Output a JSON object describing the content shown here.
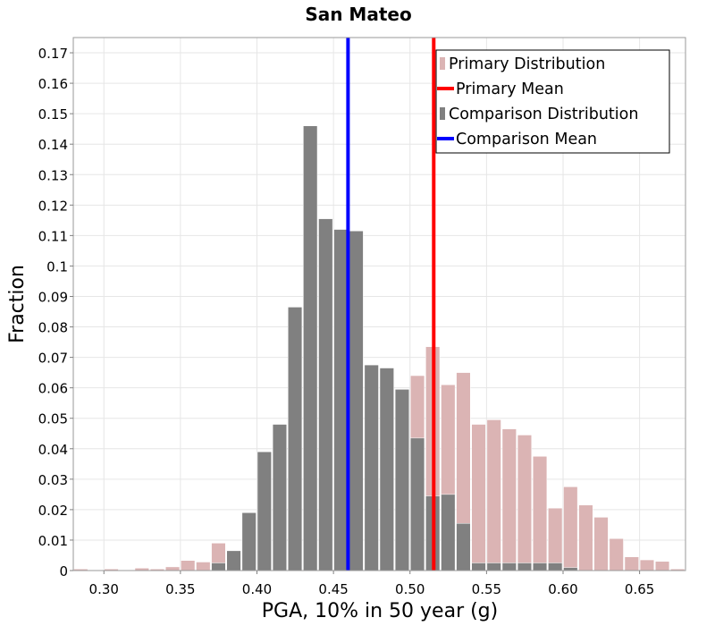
{
  "chart_data": {
    "type": "bar",
    "title": "San Mateo",
    "xlabel": "PGA, 10% in 50 year (g)",
    "ylabel": "Fraction",
    "xlim": [
      0.28,
      0.68
    ],
    "ylim": [
      0,
      0.175
    ],
    "x_ticks": [
      "0.30",
      "0.35",
      "0.40",
      "0.45",
      "0.50",
      "0.55",
      "0.60",
      "0.65"
    ],
    "y_ticks": [
      "0",
      "0.01",
      "0.02",
      "0.03",
      "0.04",
      "0.05",
      "0.06",
      "0.07",
      "0.08",
      "0.09",
      "0.1",
      "0.11",
      "0.12",
      "0.13",
      "0.14",
      "0.15",
      "0.16",
      "0.17"
    ],
    "grid": true,
    "legend_position": "top-right",
    "bin_width": 0.01,
    "bin_centers": [
      0.285,
      0.295,
      0.305,
      0.315,
      0.325,
      0.335,
      0.345,
      0.355,
      0.365,
      0.375,
      0.385,
      0.395,
      0.405,
      0.415,
      0.425,
      0.435,
      0.445,
      0.455,
      0.465,
      0.475,
      0.485,
      0.495,
      0.505,
      0.515,
      0.525,
      0.535,
      0.545,
      0.555,
      0.565,
      0.575,
      0.585,
      0.595,
      0.605,
      0.615,
      0.625,
      0.635,
      0.645,
      0.655,
      0.665,
      0.675
    ],
    "series": [
      {
        "name": "Primary Distribution",
        "color": "#dbb4b4",
        "values": [
          0.0005,
          0,
          0.0005,
          0,
          0.0008,
          0.0005,
          0.0012,
          0.0033,
          0.0028,
          0.009,
          0.0015,
          0.0018,
          0.002,
          0.002,
          0.0025,
          0.0025,
          0.003,
          0.004,
          0.006,
          0.008,
          0.012,
          0.018,
          0.064,
          0.0735,
          0.061,
          0.065,
          0.048,
          0.0495,
          0.0465,
          0.0445,
          0.0375,
          0.0205,
          0.0275,
          0.0215,
          0.0175,
          0.0105,
          0.0045,
          0.0035,
          0.003,
          0.0005
        ]
      },
      {
        "name": "Comparison Distribution",
        "color": "#808080",
        "values": [
          0,
          0,
          0,
          0,
          0,
          0,
          0,
          0,
          0,
          0.0025,
          0.0065,
          0.019,
          0.039,
          0.048,
          0.0865,
          0.146,
          0.1155,
          0.112,
          0.1115,
          0.0675,
          0.0665,
          0.0595,
          0.0435,
          0.0245,
          0.025,
          0.0155,
          0.0025,
          0.0025,
          0.0025,
          0.0025,
          0.0025,
          0.0025,
          0.001,
          0,
          0,
          0,
          0,
          0,
          0,
          0
        ]
      }
    ],
    "mean_lines": [
      {
        "name": "Primary Mean",
        "x": 0.5155,
        "color": "#ff0000"
      },
      {
        "name": "Comparison Mean",
        "x": 0.4595,
        "color": "#0000ff"
      }
    ],
    "legend": [
      {
        "label": "Primary Distribution",
        "kind": "bar",
        "color": "#dbb4b4"
      },
      {
        "label": "Primary Mean",
        "kind": "line",
        "color": "#ff0000"
      },
      {
        "label": "Comparison Distribution",
        "kind": "bar",
        "color": "#808080"
      },
      {
        "label": "Comparison Mean",
        "kind": "line",
        "color": "#0000ff"
      }
    ]
  }
}
